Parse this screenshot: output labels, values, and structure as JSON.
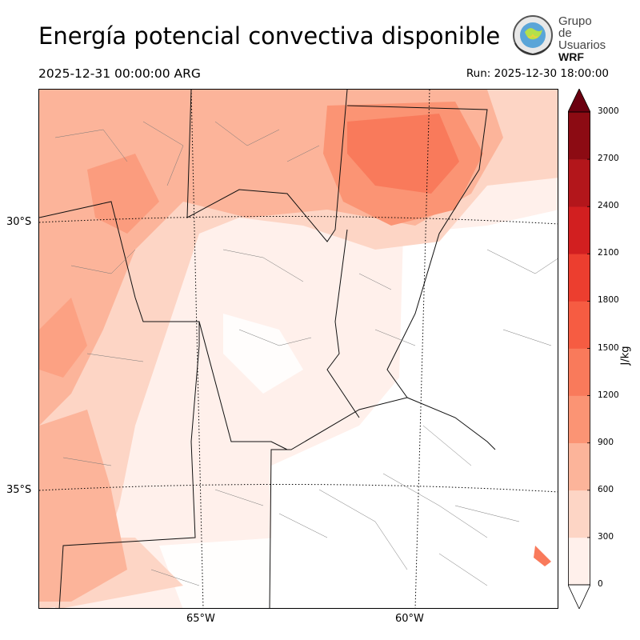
{
  "header": {
    "title": "Energía potencial convectiva disponible",
    "valid_time": "2025-12-31 00:00:00 ARG",
    "run_time": "Run: 2025-12-30 18:00:00"
  },
  "logo": {
    "line1": "Grupo de",
    "line2": "Usuarios",
    "line3": "WRF"
  },
  "axes": {
    "lat_labels": [
      "30°S",
      "35°S"
    ],
    "lon_labels": [
      "65°W",
      "60°W"
    ]
  },
  "colorbar": {
    "unit": "J/kg",
    "levels": [
      0,
      300,
      600,
      900,
      1200,
      1500,
      1800,
      2100,
      2400,
      2700,
      3000
    ],
    "tick_labels": [
      "0",
      "300",
      "600",
      "900",
      "1200",
      "1500",
      "1800",
      "2100",
      "2400",
      "2700",
      "3000"
    ],
    "colors": [
      "#fff0eb",
      "#fdd5c5",
      "#fcb49a",
      "#fb9474",
      "#f97a5b",
      "#f65c42",
      "#ec3e2f",
      "#d21f20",
      "#b3161b",
      "#8c0b13"
    ],
    "under_color": "#ffffff",
    "over_color": "#6b0010"
  }
}
